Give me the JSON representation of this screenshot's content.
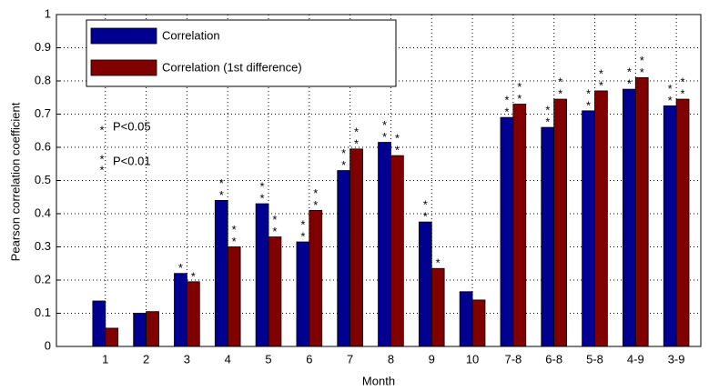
{
  "chart_data": {
    "type": "bar",
    "xlabel": "Month",
    "ylabel": "Pearson correlation coefficient",
    "categories": [
      "1",
      "2",
      "3",
      "4",
      "5",
      "6",
      "7",
      "8",
      "9",
      "10",
      "7-8",
      "6-8",
      "5-8",
      "4-9",
      "3-9"
    ],
    "xlim": [
      -0.2,
      15.6
    ],
    "ylim": [
      0,
      1
    ],
    "yticks": [
      0,
      0.1,
      0.2,
      0.3,
      0.4,
      0.5,
      0.6,
      0.7,
      0.8,
      0.9,
      1
    ],
    "grid": true,
    "legend": "upper left",
    "marker": "*",
    "marker_color": "#ff0000",
    "series": [
      {
        "name": "Correlation",
        "color": "#000090",
        "values": [
          0.137,
          0.1,
          0.22,
          0.44,
          0.43,
          0.315,
          0.53,
          0.615,
          0.375,
          0.165,
          0.69,
          0.66,
          0.71,
          0.775,
          0.725
        ],
        "stars": [
          0,
          0,
          1,
          2,
          2,
          2,
          2,
          2,
          2,
          0,
          2,
          2,
          2,
          2,
          2
        ]
      },
      {
        "name": "Correlation (1st difference)",
        "color": "#800000",
        "values": [
          0.055,
          0.105,
          0.195,
          0.3,
          0.33,
          0.41,
          0.595,
          0.575,
          0.235,
          0.14,
          0.73,
          0.745,
          0.77,
          0.81,
          0.745
        ],
        "stars": [
          0,
          0,
          1,
          2,
          2,
          2,
          2,
          2,
          1,
          0,
          2,
          2,
          2,
          2,
          2
        ]
      }
    ],
    "annotations": [
      {
        "stars": 1,
        "label": "P<0.05"
      },
      {
        "stars": 2,
        "label": "P<0.01"
      }
    ]
  }
}
